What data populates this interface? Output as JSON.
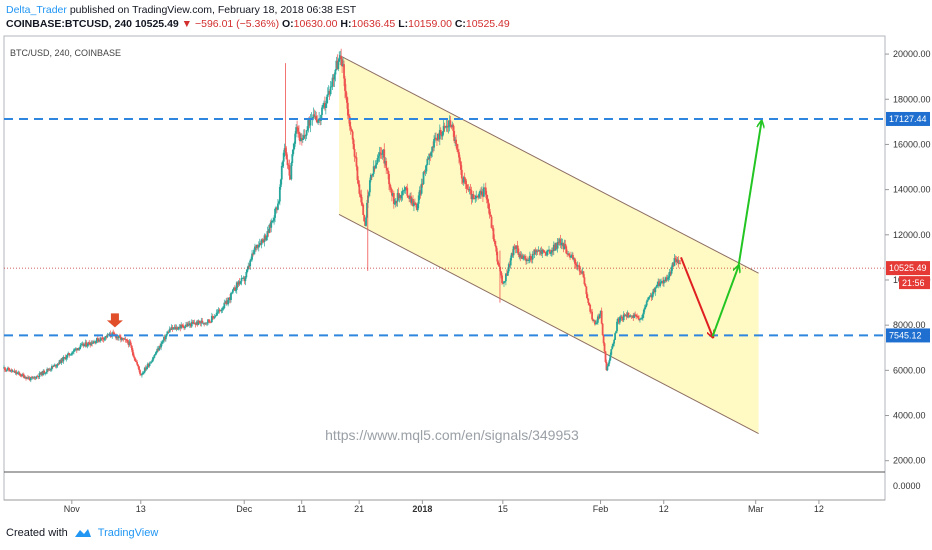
{
  "header": {
    "author": "Delta_Trader",
    "published": "published on TradingView.com, February 18, 2018 06:38 EST",
    "symbol": "COINBASE:BTCUSD, 240",
    "last": "10525.49",
    "change": "−596.01 (−5.36%)",
    "o_label": "O:",
    "o": "10630.00",
    "h_label": "H:",
    "h": "10636.45",
    "l_label": "L:",
    "l": "10159.00",
    "c_label": "C:",
    "c": "10525.49"
  },
  "footer": {
    "created_with": "Created with",
    "brand": "TradingView"
  },
  "colors": {
    "up": "#26a69a",
    "down": "#ef5350",
    "channel": "#fff9c4",
    "dashed": "#2e86de",
    "green": "#22c522",
    "red": "#e02020"
  },
  "chart_data": {
    "type": "candlestick",
    "title": "BTC/USD, 240, COINBASE",
    "watermark": "https://www.mql5.com/en/signals/349953",
    "ylim": [
      1500,
      20800
    ],
    "y_ticks": [
      "20000.00",
      "18000.00",
      "16000.00",
      "14000.00",
      "12000.00",
      "10000.00",
      "8000.00",
      "6000.00",
      "4000.00",
      "2000.00"
    ],
    "y_tick_values": [
      20000,
      18000,
      16000,
      14000,
      12000,
      10000,
      8000,
      6000,
      4000,
      2000
    ],
    "indicator_tick": "0.0000",
    "x_ticks": [
      "Nov",
      "13",
      "Dec",
      "11",
      "21",
      "2018",
      "15",
      "Feb",
      "12",
      "Mar",
      "12"
    ],
    "x_tick_days": [
      0,
      12,
      30,
      40,
      50,
      61,
      75,
      92,
      103,
      119,
      130
    ],
    "x_range_days": [
      -11.8,
      141.5
    ],
    "price_series": [
      [
        -11.8,
        6100
      ],
      [
        -7,
        5600
      ],
      [
        -3,
        6200
      ],
      [
        1,
        7000
      ],
      [
        4,
        7300
      ],
      [
        7,
        7600
      ],
      [
        10,
        7200
      ],
      [
        12,
        5800
      ],
      [
        14,
        6500
      ],
      [
        17,
        7800
      ],
      [
        20,
        8000
      ],
      [
        24,
        8200
      ],
      [
        27,
        9000
      ],
      [
        29,
        9900
      ],
      [
        30,
        10000
      ],
      [
        32,
        11500
      ],
      [
        34,
        12000
      ],
      [
        36,
        13500
      ],
      [
        37,
        16000
      ],
      [
        38,
        14500
      ],
      [
        39,
        17000
      ],
      [
        40,
        16000
      ],
      [
        42,
        17500
      ],
      [
        43,
        17000
      ],
      [
        45,
        18500
      ],
      [
        46,
        19500
      ],
      [
        47,
        19800
      ],
      [
        48,
        17500
      ],
      [
        49,
        16000
      ],
      [
        50,
        14000
      ],
      [
        51,
        12500
      ],
      [
        52,
        14500
      ],
      [
        54,
        15800
      ],
      [
        56,
        13500
      ],
      [
        58,
        14000
      ],
      [
        60,
        13200
      ],
      [
        62,
        15500
      ],
      [
        64,
        16500
      ],
      [
        66,
        17000
      ],
      [
        68,
        14500
      ],
      [
        70,
        13500
      ],
      [
        72,
        14000
      ],
      [
        74,
        11000
      ],
      [
        75,
        9700
      ],
      [
        77,
        11500
      ],
      [
        79,
        10800
      ],
      [
        81,
        11300
      ],
      [
        83,
        11200
      ],
      [
        85,
        11700
      ],
      [
        87,
        11000
      ],
      [
        89,
        10200
      ],
      [
        90,
        8800
      ],
      [
        91,
        8000
      ],
      [
        92,
        8600
      ],
      [
        93,
        6000
      ],
      [
        94,
        7000
      ],
      [
        95,
        8200
      ],
      [
        97,
        8500
      ],
      [
        99,
        8200
      ],
      [
        100,
        9000
      ],
      [
        102,
        9800
      ],
      [
        104,
        10200
      ],
      [
        105,
        11000
      ],
      [
        106,
        10525
      ]
    ],
    "levels": [
      {
        "value": 17127.44,
        "label": "17127.44"
      },
      {
        "value": 7545.12,
        "label": "7545.12"
      }
    ],
    "current_price": {
      "value": 10525.49,
      "label": "10525.49",
      "countdown": "21:56"
    },
    "channel": {
      "upper": [
        [
          46.5,
          19950
        ],
        [
          119.5,
          10300
        ]
      ],
      "lower": [
        [
          46.5,
          12900
        ],
        [
          119.5,
          3200
        ]
      ]
    },
    "markers": {
      "down_arrow": {
        "day": 7.5,
        "price": 7900
      }
    },
    "forecast": {
      "red": [
        [
          106,
          11000
        ],
        [
          111.5,
          7500
        ]
      ],
      "green": [
        [
          111.5,
          7500
        ],
        [
          116,
          10600
        ],
        [
          120,
          17000
        ]
      ]
    }
  }
}
